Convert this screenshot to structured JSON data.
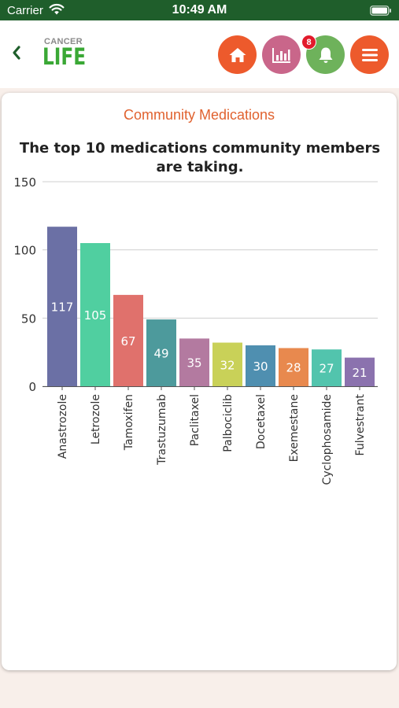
{
  "status_bar": {
    "carrier": "Carrier",
    "time": "10:49 AM"
  },
  "header": {
    "logo_top": "CANCER",
    "logo_bottom": "LIFE",
    "notification_count": "8",
    "icons": [
      "back-chevron-icon",
      "home-icon",
      "bar-chart-icon",
      "bell-icon",
      "hamburger-menu-icon"
    ],
    "colors": {
      "home": "#ed5a2c",
      "stats": "#c9668a",
      "bell": "#6eb25b",
      "menu": "#ed5a2c",
      "back": "#1f5e2b"
    }
  },
  "card": {
    "title": "Community Medications",
    "subtitle": "The top 10 medications community members are taking."
  },
  "chart_data": {
    "type": "bar",
    "title": "The top 10 medications community members are taking.",
    "categories": [
      "Anastrozole",
      "Letrozole",
      "Tamoxifen",
      "Trastuzumab",
      "Paclitaxel",
      "Palbociclib",
      "Docetaxel",
      "Exemestane",
      "Cyclophosamide",
      "Fulvestrant"
    ],
    "values": [
      117,
      105,
      67,
      49,
      35,
      32,
      30,
      28,
      27,
      21
    ],
    "colors": [
      "#6b70a5",
      "#50cfa0",
      "#e0716c",
      "#4d9a9c",
      "#b37aa0",
      "#c9d158",
      "#4f8fb0",
      "#e8894e",
      "#52c4ad",
      "#8b72ae"
    ],
    "ylim": [
      0,
      150
    ],
    "yticks": [
      0,
      50,
      100,
      150
    ],
    "xlabel": "",
    "ylabel": "",
    "grid": true,
    "data_labels": true
  }
}
